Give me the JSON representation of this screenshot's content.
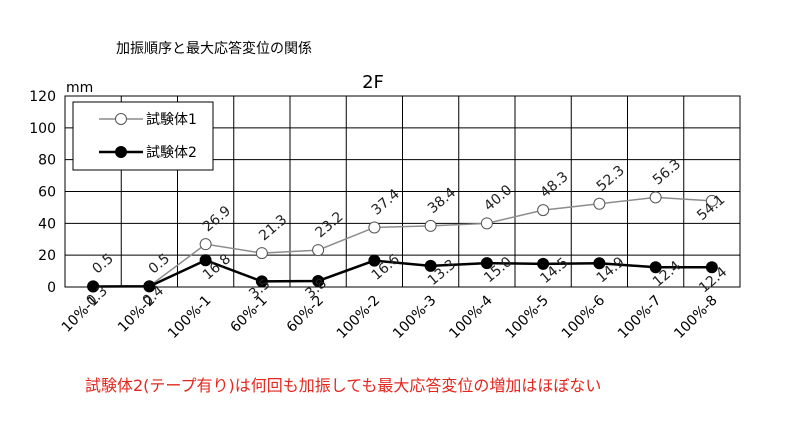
{
  "header": {
    "text": "加振順序と最大応答変位の関係"
  },
  "note": {
    "text": "試験体2(テープ有り)は何回も加振しても最大応答変位の増加はほぼない",
    "color": "#e5261f"
  },
  "chart_data": {
    "type": "line",
    "title": "2F",
    "ylabel": "mm",
    "xlabel": "",
    "ylim": [
      0,
      120
    ],
    "yticks": [
      0,
      20,
      40,
      60,
      80,
      100,
      120
    ],
    "grid": true,
    "legend": "top-left",
    "categories": [
      "10%-1",
      "10%-2",
      "100%-1",
      "60%-1",
      "60%-2",
      "100%-2",
      "100%-3",
      "100%-4",
      "100%-5",
      "100%-6",
      "100%-7",
      "100%-8"
    ],
    "series": [
      {
        "name": "試験体1",
        "marker": "open-circle",
        "values": [
          0.5,
          0.5,
          26.9,
          21.3,
          23.2,
          37.4,
          38.4,
          40.0,
          48.3,
          52.3,
          56.3,
          54.1
        ],
        "labels": [
          "0.5",
          "0.5",
          "26.9",
          "21.3",
          "23.2",
          "37.4",
          "38.4",
          "40.0",
          "48.3",
          "52.3",
          "56.3",
          "54.1"
        ]
      },
      {
        "name": "試験体2",
        "marker": "filled-circle",
        "values": [
          0.3,
          0.4,
          16.8,
          3.5,
          3.8,
          16.6,
          13.3,
          15.0,
          14.5,
          14.9,
          12.4,
          12.4
        ],
        "labels": [
          "0.3",
          "0.4",
          "16.8",
          "3.5",
          "3.8",
          "16.6",
          "13.3",
          "15.0",
          "14.5",
          "14.9",
          "12.4",
          "12.4"
        ]
      }
    ]
  }
}
